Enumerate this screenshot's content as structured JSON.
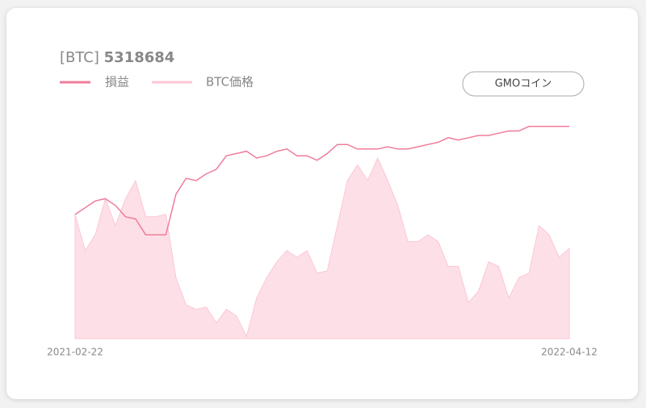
{
  "chart_data": {
    "type": "line-area",
    "title_prefix": "[BTC]",
    "title_value": 5318684,
    "button": "GMOコイン",
    "categories": [
      "2021-02-22",
      null,
      null,
      null,
      null,
      null,
      null,
      null,
      null,
      null,
      null,
      null,
      null,
      null,
      null,
      null,
      null,
      null,
      null,
      null,
      null,
      null,
      null,
      null,
      null,
      null,
      null,
      null,
      null,
      null,
      null,
      null,
      null,
      null,
      null,
      null,
      null,
      null,
      null,
      null,
      null,
      null,
      null,
      null,
      null,
      null,
      null,
      null,
      null,
      "2022-04-12"
    ],
    "ylim": [
      0,
      100
    ],
    "series": [
      {
        "name": "損益",
        "kind": "line",
        "color": "#f07c9a",
        "values": [
          55,
          58,
          61,
          62,
          59,
          54,
          53,
          46,
          46,
          46,
          64,
          71,
          70,
          73,
          75,
          81,
          82,
          83,
          80,
          81,
          83,
          84,
          81,
          81,
          79,
          82,
          86,
          86,
          84,
          84,
          84,
          85,
          84,
          84,
          85,
          86,
          87,
          89,
          88,
          89,
          90,
          90,
          91,
          92,
          92,
          94,
          94,
          94,
          94,
          94
        ]
      },
      {
        "name": "BTC価格",
        "kind": "area",
        "color": "#fcc6d4",
        "values": [
          55,
          39,
          46,
          62,
          50,
          62,
          70,
          54,
          54,
          55,
          27,
          15,
          13,
          14,
          7,
          13,
          10,
          1,
          18,
          27,
          34,
          39,
          36,
          39,
          29,
          30,
          50,
          70,
          77,
          70,
          80,
          70,
          59,
          43,
          43,
          46,
          43,
          32,
          32,
          16,
          21,
          34,
          32,
          18,
          27,
          29,
          50,
          46,
          36,
          40
        ]
      }
    ]
  }
}
